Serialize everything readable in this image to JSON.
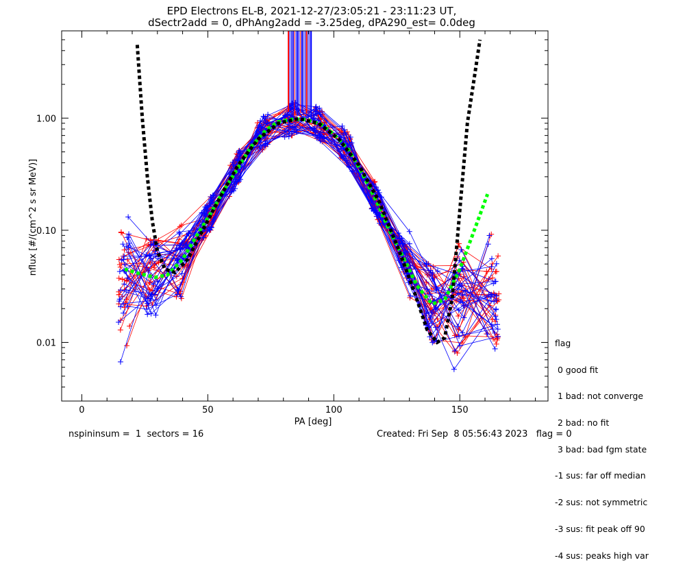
{
  "figure": {
    "title_line1": "EPD Electrons EL-B, 2021-12-27/23:05:21 - 23:11:23 UT,",
    "title_line2": "dSectr2add = 0, dPhAng2add = -3.25deg, dPA290_est=   0.0deg"
  },
  "legend": {
    "title": "flag",
    "items": [
      " 0 good fit",
      " 1 bad: not converge",
      " 2 bad: no fit",
      " 3 bad: bad fgm state",
      "-1 sus: far off median",
      "-2 sus: not symmetric",
      "-3 sus: fit peak off 90",
      "-4 sus: peaks high var"
    ]
  },
  "footer": {
    "left": "nspininsum =  1  sectors = 16",
    "right": "Created: Fri Sep  8 05:56:43 2023   flag = 0"
  },
  "colors": {
    "series_a": "#ff0000",
    "series_b": "#0000ff",
    "fit_curve": "#00ff00",
    "alt_fit_curve": "#000000",
    "axes": "#000000"
  },
  "chart_data": {
    "type": "line",
    "title": "EPD Electrons EL-B, 2021-12-27/23:05:21 - 23:11:23 UT,",
    "subtitle": "dSectr2add = 0, dPhAng2add = -3.25deg, dPA290_est=   0.0deg",
    "xlabel": "PA [deg]",
    "ylabel": "nflux [#/(cm^2 s sr MeV)]",
    "xlim": [
      -8,
      185
    ],
    "ylim": [
      0.003,
      6.0
    ],
    "yscale": "log",
    "xticks": [
      0,
      50,
      100,
      150
    ],
    "yticks": [
      0.01,
      0.1,
      1.0
    ],
    "ytick_labels": [
      "0.01",
      "0.10",
      "1.00"
    ],
    "grid": false,
    "series": [
      {
        "x": [
          17,
          23,
          29,
          34,
          40,
          45,
          51,
          56,
          62,
          67,
          73,
          78,
          84,
          89,
          95,
          100,
          106,
          111,
          117,
          122,
          128,
          133,
          139,
          144,
          150,
          155,
          161
        ],
        "y": [
          0.045,
          0.041,
          0.038,
          0.04,
          0.055,
          0.085,
          0.14,
          0.22,
          0.36,
          0.55,
          0.78,
          0.93,
          0.98,
          0.97,
          0.88,
          0.72,
          0.52,
          0.33,
          0.18,
          0.1,
          0.055,
          0.032,
          0.022,
          0.024,
          0.045,
          0.09,
          0.21
        ]
      },
      {
        "x": [
          22,
          24,
          26,
          28,
          30,
          33,
          37,
          42,
          48,
          55,
          62,
          70,
          78,
          86,
          94,
          102,
          110,
          118,
          126,
          132,
          137,
          141,
          144,
          147,
          150,
          153,
          156,
          158
        ],
        "y": [
          4.5,
          1.0,
          0.3,
          0.12,
          0.065,
          0.045,
          0.042,
          0.055,
          0.1,
          0.2,
          0.38,
          0.65,
          0.9,
          0.99,
          0.9,
          0.65,
          0.38,
          0.18,
          0.065,
          0.028,
          0.013,
          0.01,
          0.011,
          0.025,
          0.15,
          0.9,
          2.5,
          5.0
        ]
      }
    ]
  }
}
